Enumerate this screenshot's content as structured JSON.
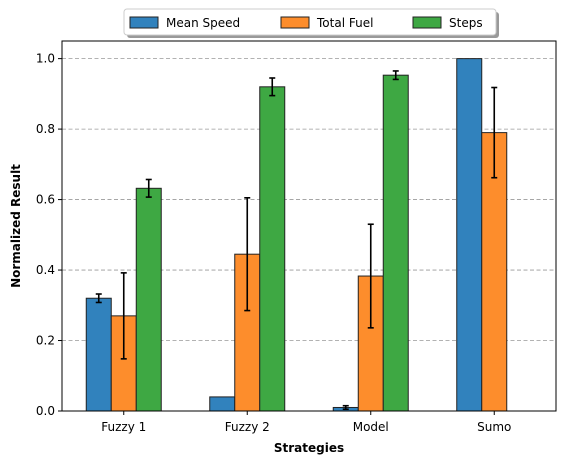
{
  "chart_data": {
    "type": "bar",
    "title": "",
    "xlabel": "Strategies",
    "ylabel": "Normalized Result",
    "categories": [
      "Fuzzy 1",
      "Fuzzy 2",
      "Model",
      "Sumo"
    ],
    "ylim": [
      0,
      1.05
    ],
    "yticks": [
      0.0,
      0.2,
      0.4,
      0.6,
      0.8,
      1.0
    ],
    "ytick_labels": [
      "0.0",
      "0.2",
      "0.4",
      "0.6",
      "0.8",
      "1.0"
    ],
    "grid": "horizontal dashed",
    "legend_position": "top-center, outside",
    "series": [
      {
        "name": "Mean Speed",
        "color": "#3182bd",
        "values": [
          0.32,
          0.04,
          0.01,
          1.0
        ],
        "errors": [
          0.012,
          0.0,
          0.005,
          0.0
        ]
      },
      {
        "name": "Total Fuel",
        "color": "#fd8d2c",
        "values": [
          0.27,
          0.445,
          0.383,
          0.79
        ],
        "errors": [
          0.122,
          0.16,
          0.147,
          0.128
        ]
      },
      {
        "name": "Steps",
        "color": "#3ea843",
        "values": [
          0.632,
          0.92,
          0.953,
          0.0
        ],
        "errors": [
          0.025,
          0.025,
          0.012,
          0.0
        ]
      }
    ]
  }
}
